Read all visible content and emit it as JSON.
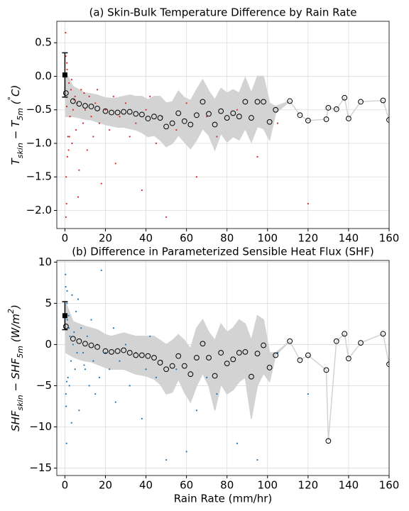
{
  "chart_data": [
    {
      "type": "scatter",
      "title": "(a) Skin-Bulk Temperature Difference by Rain Rate",
      "ylabel": [
        {
          "text": "T"
        },
        {
          "text": "skin",
          "sub": true
        },
        {
          "text": " − T"
        },
        {
          "text": "5m",
          "sub": true
        },
        {
          "text": " ("
        },
        {
          "text": "°",
          "sup": true
        },
        {
          "text": "C)"
        }
      ],
      "xlim": [
        -4,
        160
      ],
      "xticks": [
        0,
        20,
        40,
        60,
        80,
        100,
        120,
        140,
        160
      ],
      "ylim": [
        -2.27,
        0.82
      ],
      "yticks": [
        {
          "value": -2,
          "label": "−2.0"
        },
        {
          "value": -1.5,
          "label": "−1.5"
        },
        {
          "value": -1,
          "label": "−1.0"
        },
        {
          "value": -0.5,
          "label": "−0.5"
        },
        {
          "value": 0,
          "label": "0.0"
        },
        0.5
      ],
      "grid": true,
      "points": {
        "color": "#d62728",
        "x": [
          0.3,
          0.5,
          0.8,
          1,
          1.2,
          1.5,
          2,
          2.5,
          3,
          3.5,
          4,
          5,
          5.5,
          6,
          7,
          8,
          9,
          10,
          11,
          12,
          13,
          14,
          15,
          16,
          17,
          18,
          20,
          22,
          24,
          25,
          27,
          30,
          32,
          35,
          38,
          40,
          42,
          45,
          48,
          50,
          55,
          60,
          65,
          70,
          75,
          85,
          95,
          105,
          120,
          160,
          0.4,
          0.6,
          1.1,
          2.2,
          3.3,
          1.8,
          0.9,
          4.5,
          6.5,
          9.5
        ],
        "y": [
          0.65,
          -2.1,
          -1.9,
          0.2,
          -1.2,
          -0.9,
          -0.1,
          -0.6,
          -0.2,
          -1.0,
          -0.5,
          -0.3,
          -0.8,
          -0.4,
          -1.4,
          -0.2,
          -0.7,
          -0.5,
          -1.1,
          -0.3,
          -0.6,
          -0.9,
          -0.4,
          -0.2,
          -0.7,
          -1.6,
          -0.5,
          -0.8,
          -0.3,
          -1.3,
          -0.6,
          -0.4,
          -0.9,
          -0.7,
          -1.7,
          -0.5,
          -0.3,
          -1.0,
          -0.6,
          -2.1,
          -0.8,
          -0.4,
          -1.5,
          -0.6,
          -0.9,
          -0.5,
          -1.2,
          -0.7,
          -1.9,
          -0.65,
          0.3,
          -1.5,
          0.1,
          -0.9,
          -0.05,
          -1.1,
          -0.45,
          -0.35,
          -1.8,
          -0.25
        ]
      },
      "bins": {
        "band_color": "#d3d3d3",
        "x": [
          0.5,
          4,
          7,
          10,
          13,
          16,
          20,
          23,
          26,
          29,
          32,
          35,
          38,
          41,
          44,
          47,
          50,
          53,
          56,
          59,
          62,
          65,
          68,
          71,
          74,
          77,
          80,
          83,
          86,
          89,
          92,
          95,
          98,
          101,
          104,
          111,
          116,
          120,
          129,
          130,
          134,
          138,
          140,
          146,
          157,
          160
        ],
        "mean": [
          -0.25,
          -0.37,
          -0.41,
          -0.44,
          -0.45,
          -0.48,
          -0.52,
          -0.54,
          -0.54,
          -0.53,
          -0.53,
          -0.56,
          -0.57,
          -0.63,
          -0.6,
          -0.62,
          -0.75,
          -0.7,
          -0.55,
          -0.67,
          -0.72,
          -0.58,
          -0.38,
          -0.56,
          -0.72,
          -0.52,
          -0.62,
          -0.55,
          -0.6,
          -0.38,
          -0.62,
          -0.38,
          -0.38,
          -0.68,
          -0.5,
          -0.37,
          -0.58,
          -0.66,
          -0.64,
          -0.47,
          -0.49,
          -0.32,
          -0.63,
          -0.38,
          -0.36,
          -0.65
        ],
        "lower": [
          -0.6,
          -0.6,
          -0.62,
          -0.64,
          -0.65,
          -0.68,
          -0.72,
          -0.74,
          -0.76,
          -0.76,
          -0.78,
          -0.8,
          -0.84,
          -0.9,
          -0.88,
          -0.95,
          -1.05,
          -1.0,
          -0.88,
          -0.98,
          -1.08,
          -0.95,
          -0.78,
          -0.88,
          -1.1,
          -0.85,
          -0.98,
          -0.9,
          -0.95,
          -0.78,
          -0.98,
          -0.75,
          -0.78,
          -0.95,
          -0.55,
          -0.37,
          -0.58,
          -0.66,
          -0.64,
          -0.47,
          -0.49,
          -0.32,
          -0.63,
          -0.38,
          -0.36,
          -0.65
        ],
        "upper": [
          0.05,
          -0.15,
          -0.2,
          -0.25,
          -0.26,
          -0.28,
          -0.32,
          -0.33,
          -0.32,
          -0.3,
          -0.28,
          -0.3,
          -0.3,
          -0.35,
          -0.3,
          -0.3,
          -0.4,
          -0.38,
          -0.22,
          -0.32,
          -0.36,
          -0.2,
          -0.05,
          -0.22,
          -0.35,
          -0.18,
          -0.25,
          -0.2,
          -0.25,
          -0.02,
          -0.25,
          0.0,
          0.0,
          -0.4,
          -0.45,
          -0.37,
          -0.58,
          -0.66,
          -0.64,
          -0.47,
          -0.49,
          -0.32,
          -0.63,
          -0.38,
          -0.36,
          -0.65
        ]
      },
      "reference": {
        "x": 0,
        "y": 0.02,
        "error": 0.33
      }
    },
    {
      "type": "scatter",
      "title": "(b) Difference in Parameterized Sensible Heat Flux (SHF)",
      "xlabel": "Rain Rate (mm/hr)",
      "ylabel": [
        {
          "text": "SHF"
        },
        {
          "text": "skin",
          "sub": true
        },
        {
          "text": " − SHF"
        },
        {
          "text": "5m",
          "sub": true
        },
        {
          "text": " (W/m"
        },
        {
          "text": "2",
          "sup": true
        },
        {
          "text": ")"
        }
      ],
      "xlim": [
        -4,
        160
      ],
      "xticks": [
        0,
        20,
        40,
        60,
        80,
        100,
        120,
        140,
        160
      ],
      "ylim": [
        -15.9,
        10.2
      ],
      "yticks": [
        {
          "value": -15,
          "label": "−15"
        },
        {
          "value": -10,
          "label": "−10"
        },
        {
          "value": -5,
          "label": "−5"
        },
        0,
        5,
        10
      ],
      "grid": true,
      "points": {
        "color": "#1f77b4",
        "x": [
          0.3,
          0.5,
          0.8,
          1,
          1.2,
          1.5,
          2,
          2.5,
          3,
          3.5,
          4,
          5,
          5.5,
          6,
          7,
          8,
          9,
          10,
          11,
          12,
          13,
          14,
          15,
          16,
          17,
          18,
          20,
          22,
          24,
          25,
          27,
          30,
          32,
          35,
          38,
          40,
          42,
          45,
          48,
          50,
          55,
          60,
          65,
          70,
          75,
          85,
          95,
          105,
          120,
          160,
          0.4,
          0.6,
          1.1,
          2.2,
          3.3,
          1.8,
          0.9,
          4.5,
          6.5,
          9.5
        ],
        "y": [
          8.5,
          -6,
          -12,
          5,
          3,
          -4,
          2,
          1,
          -2,
          6,
          0,
          -3,
          4,
          -1,
          -8,
          2,
          -1,
          -3,
          1,
          -5,
          3,
          -2,
          -6,
          0,
          -4,
          9,
          -1,
          -3,
          2,
          -7,
          -2,
          0,
          -5,
          -1,
          -9,
          -3,
          1,
          -4,
          -2,
          -14,
          -3,
          -13,
          -8,
          -4,
          -6,
          -12,
          -14,
          -1,
          -6,
          -2.4,
          7,
          -7.5,
          6.5,
          -5,
          -9.5,
          3.5,
          -4.5,
          1.5,
          5.5,
          -2.5
        ]
      },
      "bins": {
        "band_color": "#d3d3d3",
        "x": [
          0.5,
          4,
          7,
          10,
          13,
          16,
          20,
          23,
          26,
          29,
          32,
          35,
          38,
          41,
          44,
          47,
          50,
          53,
          56,
          59,
          62,
          65,
          68,
          71,
          74,
          77,
          80,
          83,
          86,
          89,
          92,
          95,
          98,
          101,
          104,
          111,
          116,
          120,
          129,
          130,
          134,
          138,
          140,
          146,
          157,
          160
        ],
        "mean": [
          2.2,
          0.7,
          0.4,
          0.1,
          -0.1,
          -0.3,
          -0.8,
          -0.9,
          -0.8,
          -0.7,
          -1.0,
          -1.3,
          -1.3,
          -1.4,
          -1.6,
          -2.2,
          -3.0,
          -2.6,
          -1.4,
          -2.6,
          -3.6,
          -1.6,
          0.1,
          -1.6,
          -3.8,
          -1.0,
          -2.3,
          -1.8,
          -1.0,
          -0.9,
          -3.9,
          -1.1,
          -0.1,
          -2.8,
          -1.3,
          0.4,
          -1.9,
          -1.3,
          -3.1,
          -11.7,
          0.4,
          1.3,
          -1.7,
          0.2,
          1.3,
          -2.4
        ],
        "lower": [
          -1.0,
          -1.5,
          -1.8,
          -2.0,
          -2.1,
          -2.4,
          -2.8,
          -3.0,
          -3.0,
          -3.0,
          -3.3,
          -3.6,
          -3.7,
          -3.9,
          -4.2,
          -4.8,
          -6.0,
          -5.8,
          -4.2,
          -5.8,
          -7.0,
          -5.0,
          -3.5,
          -5.0,
          -8.0,
          -4.8,
          -6.0,
          -5.5,
          -4.5,
          -4.0,
          -9.0,
          -5.0,
          -3.5,
          -4.5,
          -1.3,
          0.4,
          -1.9,
          -1.3,
          -3.1,
          -11.7,
          0.4,
          1.3,
          -1.7,
          0.2,
          1.3,
          -2.4
        ],
        "upper": [
          5.0,
          2.8,
          2.5,
          2.2,
          2.0,
          1.8,
          1.2,
          1.0,
          1.2,
          1.4,
          1.2,
          1.0,
          1.0,
          1.0,
          1.0,
          0.5,
          0.0,
          0.5,
          1.2,
          0.5,
          -0.5,
          2.0,
          3.0,
          1.5,
          0.5,
          2.5,
          1.5,
          2.0,
          3.0,
          2.5,
          0.5,
          3.5,
          3.0,
          -1.0,
          -1.0,
          0.4,
          -1.9,
          -1.3,
          -3.1,
          -11.7,
          0.4,
          1.3,
          -1.7,
          0.2,
          1.3,
          -2.4
        ]
      },
      "reference": {
        "x": 0,
        "y": 3.5,
        "error": 1.7
      }
    }
  ]
}
